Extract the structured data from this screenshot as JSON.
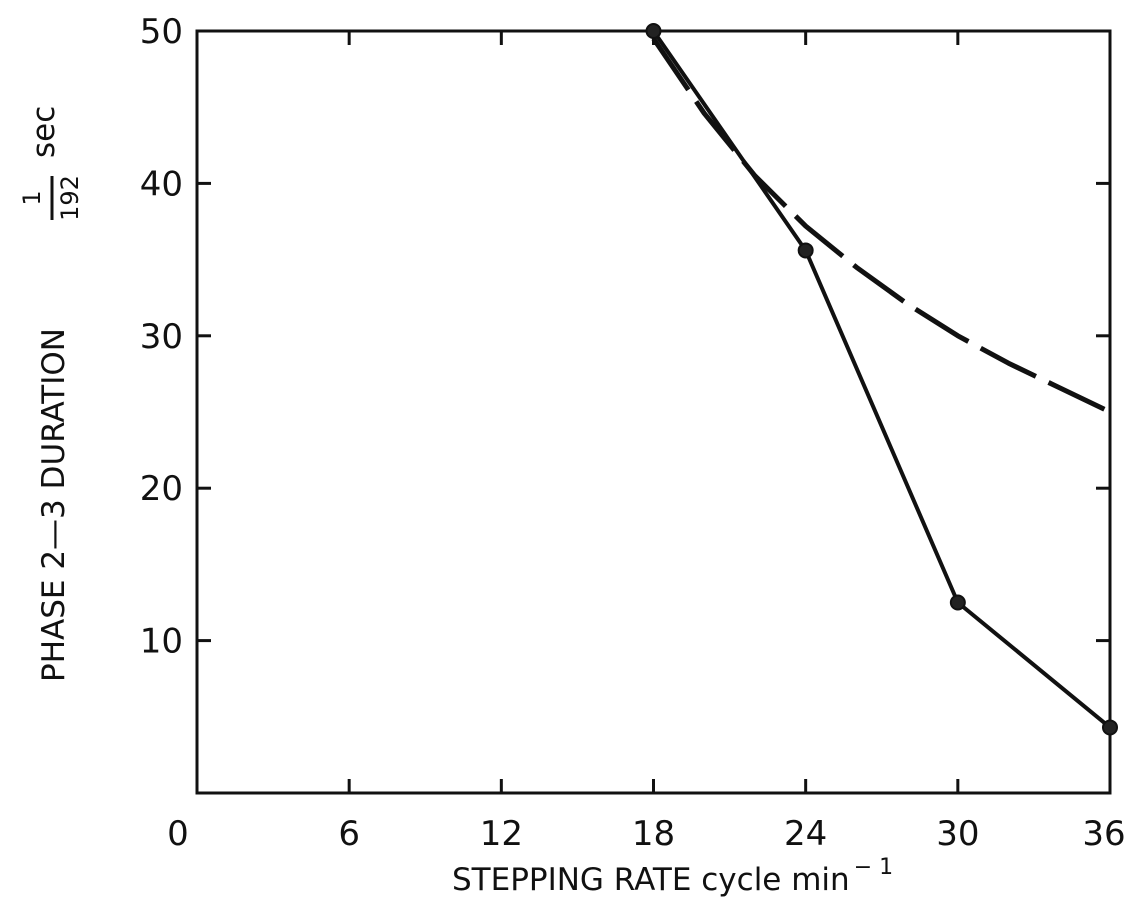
{
  "chart_data": {
    "type": "line",
    "x_ticks": [
      "0",
      "6",
      "12",
      "18",
      "24",
      "30",
      "36"
    ],
    "y_ticks": [
      "10",
      "20",
      "30",
      "40",
      "50"
    ],
    "xlim": [
      0,
      36
    ],
    "ylim": [
      0,
      50
    ],
    "grid": false,
    "xlabel": {
      "text": "STEPPING RATE cycle min",
      "superscript": "− 1"
    },
    "ylabel": {
      "text": "PHASE 2—3 DURATION",
      "fraction_numerator": "1",
      "fraction_denominator": "192",
      "unit": "sec"
    },
    "series": [
      {
        "style": "solid",
        "markers": true,
        "color": "#111111",
        "x": [
          18,
          24,
          30,
          36
        ],
        "y": [
          50,
          35.6,
          12.5,
          4.3
        ]
      },
      {
        "style": "dashed",
        "markers": false,
        "color": "#111111",
        "x": [
          18,
          20,
          22,
          24,
          26,
          28,
          30,
          32,
          34,
          36
        ],
        "y": [
          49.5,
          44.6,
          40.5,
          37.2,
          34.5,
          32.1,
          30.0,
          28.2,
          26.6,
          25.0
        ]
      }
    ]
  }
}
